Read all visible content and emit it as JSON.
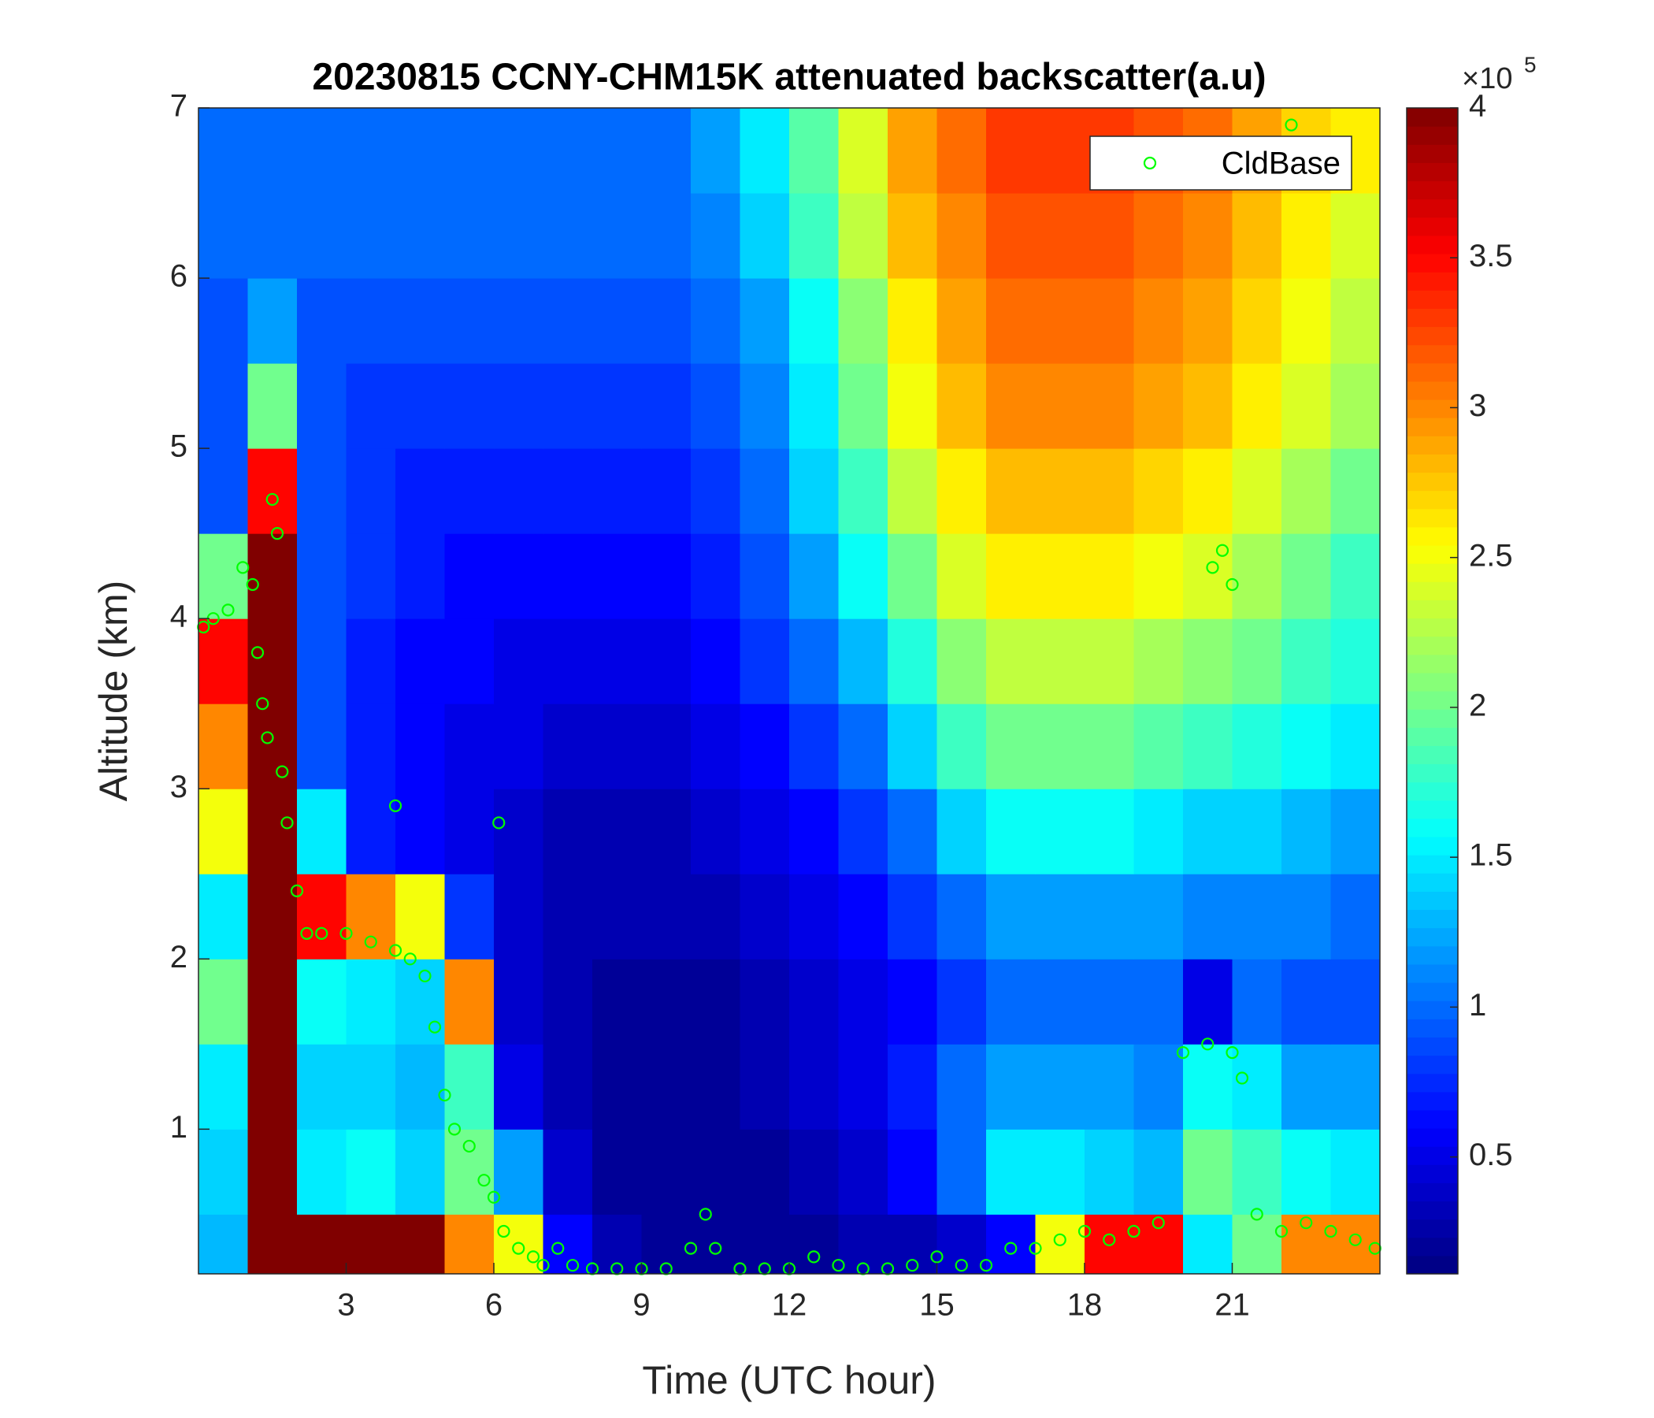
{
  "chart_data": {
    "type": "heatmap",
    "title": "20230815 CCNY-CHM15K attenuated backscatter(a.u)",
    "xlabel": "Time (UTC hour)",
    "ylabel": "Altitude (km)",
    "xlim": [
      0,
      24
    ],
    "ylim": [
      0.15,
      7
    ],
    "xticks": [
      3,
      6,
      9,
      12,
      15,
      18,
      21
    ],
    "yticks": [
      1,
      2,
      3,
      4,
      5,
      6,
      7
    ],
    "colormap": "jet",
    "clim": [
      0.11,
      4
    ],
    "cticks": [
      0.5,
      1,
      1.5,
      2,
      2.5,
      3,
      3.5,
      4
    ],
    "colorbar_multiplier": "×10",
    "colorbar_exponent": "5",
    "legend": "northeast",
    "xbins": [
      0,
      1,
      2,
      3,
      4,
      5,
      6,
      7,
      8,
      9,
      10,
      11,
      12,
      13,
      14,
      15,
      16,
      17,
      18,
      19,
      20,
      21,
      22,
      23,
      24
    ],
    "ybins": [
      0.15,
      0.5,
      1,
      1.5,
      2,
      2.5,
      3,
      3.5,
      4,
      4.5,
      5,
      5.5,
      6,
      6.5,
      7
    ],
    "z": [
      [
        1.3,
        4,
        4,
        4,
        4,
        3,
        2.5,
        0.6,
        0.3,
        0.2,
        0.2,
        0.2,
        0.2,
        0.3,
        0.3,
        0.4,
        0.6,
        2.5,
        3.5,
        3.5,
        1.5,
        2,
        3,
        3
      ],
      [
        1.4,
        4,
        1.5,
        1.6,
        1.4,
        2,
        1.2,
        0.4,
        0.2,
        0.2,
        0.2,
        0.2,
        0.3,
        0.4,
        0.6,
        1,
        1.5,
        1.5,
        1.4,
        1.3,
        2,
        1.8,
        1.6,
        1.5
      ],
      [
        1.5,
        4,
        1.4,
        1.4,
        1.3,
        1.8,
        0.5,
        0.3,
        0.2,
        0.2,
        0.2,
        0.3,
        0.4,
        0.5,
        0.7,
        1,
        1.2,
        1.2,
        1.2,
        1.1,
        1.6,
        1.5,
        1.2,
        1.2
      ],
      [
        2,
        4,
        1.6,
        1.5,
        1.4,
        3,
        0.4,
        0.3,
        0.2,
        0.2,
        0.2,
        0.3,
        0.4,
        0.5,
        0.6,
        0.8,
        1,
        1,
        1,
        1,
        0.5,
        1,
        0.9,
        0.9
      ],
      [
        1.5,
        4,
        3.5,
        3,
        2.5,
        0.8,
        0.4,
        0.3,
        0.3,
        0.3,
        0.3,
        0.4,
        0.5,
        0.6,
        0.8,
        1,
        1.2,
        1.2,
        1.2,
        1.2,
        1.1,
        1.1,
        1.1,
        1
      ],
      [
        2.5,
        4,
        1.5,
        0.7,
        0.6,
        0.5,
        0.4,
        0.3,
        0.3,
        0.3,
        0.4,
        0.5,
        0.6,
        0.8,
        1,
        1.4,
        1.6,
        1.6,
        1.6,
        1.5,
        1.4,
        1.4,
        1.3,
        1.2
      ],
      [
        3,
        4,
        0.9,
        0.7,
        0.6,
        0.5,
        0.5,
        0.4,
        0.4,
        0.4,
        0.5,
        0.6,
        0.8,
        1,
        1.4,
        1.8,
        2,
        2,
        2,
        1.9,
        1.8,
        1.7,
        1.6,
        1.5
      ],
      [
        3.5,
        4,
        0.9,
        0.7,
        0.6,
        0.6,
        0.5,
        0.5,
        0.5,
        0.5,
        0.6,
        0.8,
        1,
        1.3,
        1.7,
        2.1,
        2.3,
        2.3,
        2.3,
        2.2,
        2.1,
        2,
        1.8,
        1.7
      ],
      [
        2,
        4,
        0.9,
        0.8,
        0.7,
        0.6,
        0.6,
        0.6,
        0.6,
        0.6,
        0.7,
        0.9,
        1.2,
        1.6,
        2,
        2.4,
        2.6,
        2.6,
        2.6,
        2.5,
        2.4,
        2.2,
        2,
        1.8
      ],
      [
        0.9,
        3.5,
        0.9,
        0.8,
        0.7,
        0.7,
        0.7,
        0.7,
        0.7,
        0.7,
        0.8,
        1,
        1.4,
        1.8,
        2.3,
        2.6,
        2.8,
        2.8,
        2.8,
        2.7,
        2.6,
        2.4,
        2.2,
        2
      ],
      [
        0.9,
        2,
        0.9,
        0.8,
        0.8,
        0.8,
        0.8,
        0.8,
        0.8,
        0.8,
        0.9,
        1.1,
        1.5,
        2,
        2.5,
        2.8,
        3,
        3,
        3,
        2.9,
        2.8,
        2.6,
        2.4,
        2.2
      ],
      [
        0.9,
        1.2,
        0.9,
        0.9,
        0.9,
        0.9,
        0.9,
        0.9,
        0.9,
        0.9,
        1,
        1.2,
        1.6,
        2.1,
        2.6,
        2.9,
        3.1,
        3.1,
        3.1,
        3,
        2.9,
        2.7,
        2.5,
        2.3
      ],
      [
        1,
        1,
        1,
        1,
        1,
        1,
        1,
        1,
        1,
        1,
        1.1,
        1.4,
        1.8,
        2.3,
        2.8,
        3,
        3.2,
        3.2,
        3.2,
        3.1,
        3,
        2.8,
        2.6,
        2.4
      ],
      [
        1,
        1,
        1,
        1,
        1,
        1,
        1,
        1,
        1,
        1,
        1.2,
        1.5,
        1.9,
        2.4,
        2.9,
        3.1,
        3.3,
        3.3,
        3.3,
        3.2,
        3.1,
        2.9,
        2.7,
        2.6
      ]
    ],
    "series": [
      {
        "name": "CldBase",
        "type": "scatter",
        "color": "#00ff00",
        "x": [
          0.1,
          0.3,
          0.6,
          0.9,
          1.1,
          1.2,
          1.3,
          1.4,
          1.5,
          1.6,
          1.7,
          1.8,
          2.0,
          2.2,
          2.5,
          3,
          3.5,
          4,
          4.3,
          4.6,
          4.8,
          5,
          5.2,
          5.5,
          5.8,
          6,
          6.2,
          6.5,
          6.8,
          7,
          7.3,
          7.6,
          8,
          8.5,
          9,
          9.5,
          10,
          10.3,
          10.5,
          11,
          11.5,
          12,
          12.5,
          13,
          13.5,
          14,
          14.5,
          15,
          15.5,
          16,
          16.5,
          17,
          17.5,
          18,
          18.5,
          19,
          19.5,
          20,
          20.5,
          21,
          21.2,
          21.5,
          22,
          22.5,
          23,
          23.5,
          23.9,
          20.6,
          20.8,
          21.0,
          22.2,
          6.1,
          4.0
        ],
        "y": [
          3.95,
          4.0,
          4.05,
          4.3,
          4.2,
          3.8,
          3.5,
          3.3,
          4.7,
          4.5,
          3.1,
          2.8,
          2.4,
          2.15,
          2.15,
          2.15,
          2.1,
          2.05,
          2.0,
          1.9,
          1.6,
          1.2,
          1.0,
          0.9,
          0.7,
          0.6,
          0.4,
          0.3,
          0.25,
          0.2,
          0.3,
          0.2,
          0.18,
          0.18,
          0.18,
          0.18,
          0.3,
          0.5,
          0.3,
          0.18,
          0.18,
          0.18,
          0.25,
          0.2,
          0.18,
          0.18,
          0.2,
          0.25,
          0.2,
          0.2,
          0.3,
          0.3,
          0.35,
          0.4,
          0.35,
          0.4,
          0.45,
          1.45,
          1.5,
          1.45,
          1.3,
          0.5,
          0.4,
          0.45,
          0.4,
          0.35,
          0.3,
          4.3,
          4.4,
          4.2,
          6.9,
          2.8,
          2.9
        ]
      }
    ]
  }
}
